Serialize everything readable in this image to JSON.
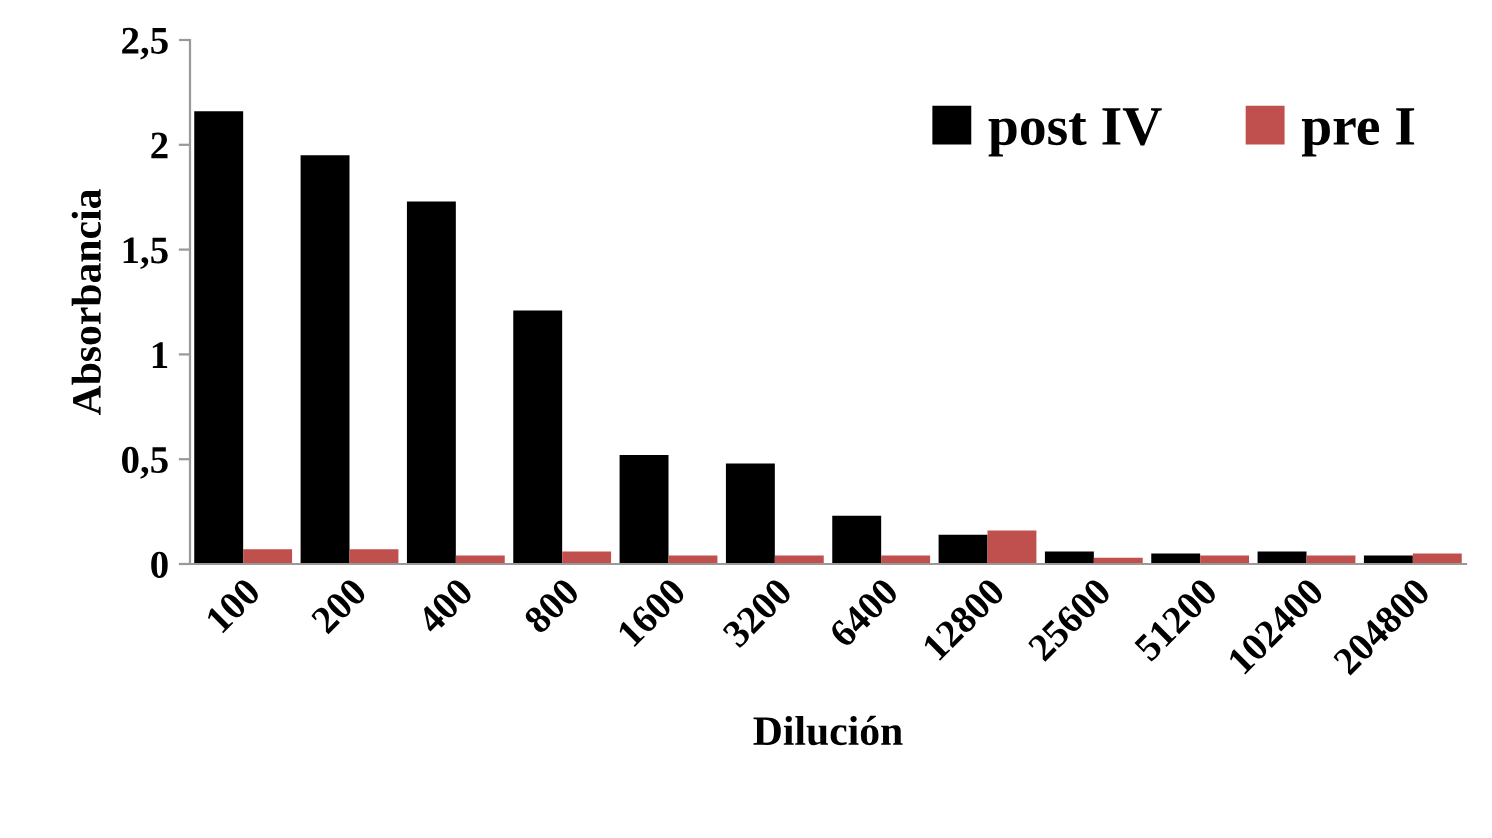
{
  "chart_data": {
    "type": "bar",
    "xlabel": "Dilución",
    "ylabel": "Absorbancia",
    "categories": [
      "100",
      "200",
      "400",
      "800",
      "1600",
      "3200",
      "6400",
      "12800",
      "25600",
      "51200",
      "102400",
      "204800"
    ],
    "series": [
      {
        "name": "post IV",
        "color": "#000000",
        "values": [
          2.16,
          1.95,
          1.73,
          1.21,
          0.52,
          0.48,
          0.23,
          0.14,
          0.06,
          0.05,
          0.06,
          0.04
        ]
      },
      {
        "name": "pre I",
        "color": "#c0504d",
        "values": [
          0.07,
          0.07,
          0.04,
          0.06,
          0.04,
          0.04,
          0.04,
          0.16,
          0.03,
          0.04,
          0.04,
          0.05
        ]
      }
    ],
    "ylim": [
      0,
      2.5
    ],
    "yticks": [
      0,
      {
        "value": 0.5,
        "label": "0,5"
      },
      1,
      {
        "value": 1.5,
        "label": "1,5"
      },
      2,
      {
        "value": 2.5,
        "label": "2,5"
      }
    ],
    "grid": false,
    "legend": "top right"
  }
}
